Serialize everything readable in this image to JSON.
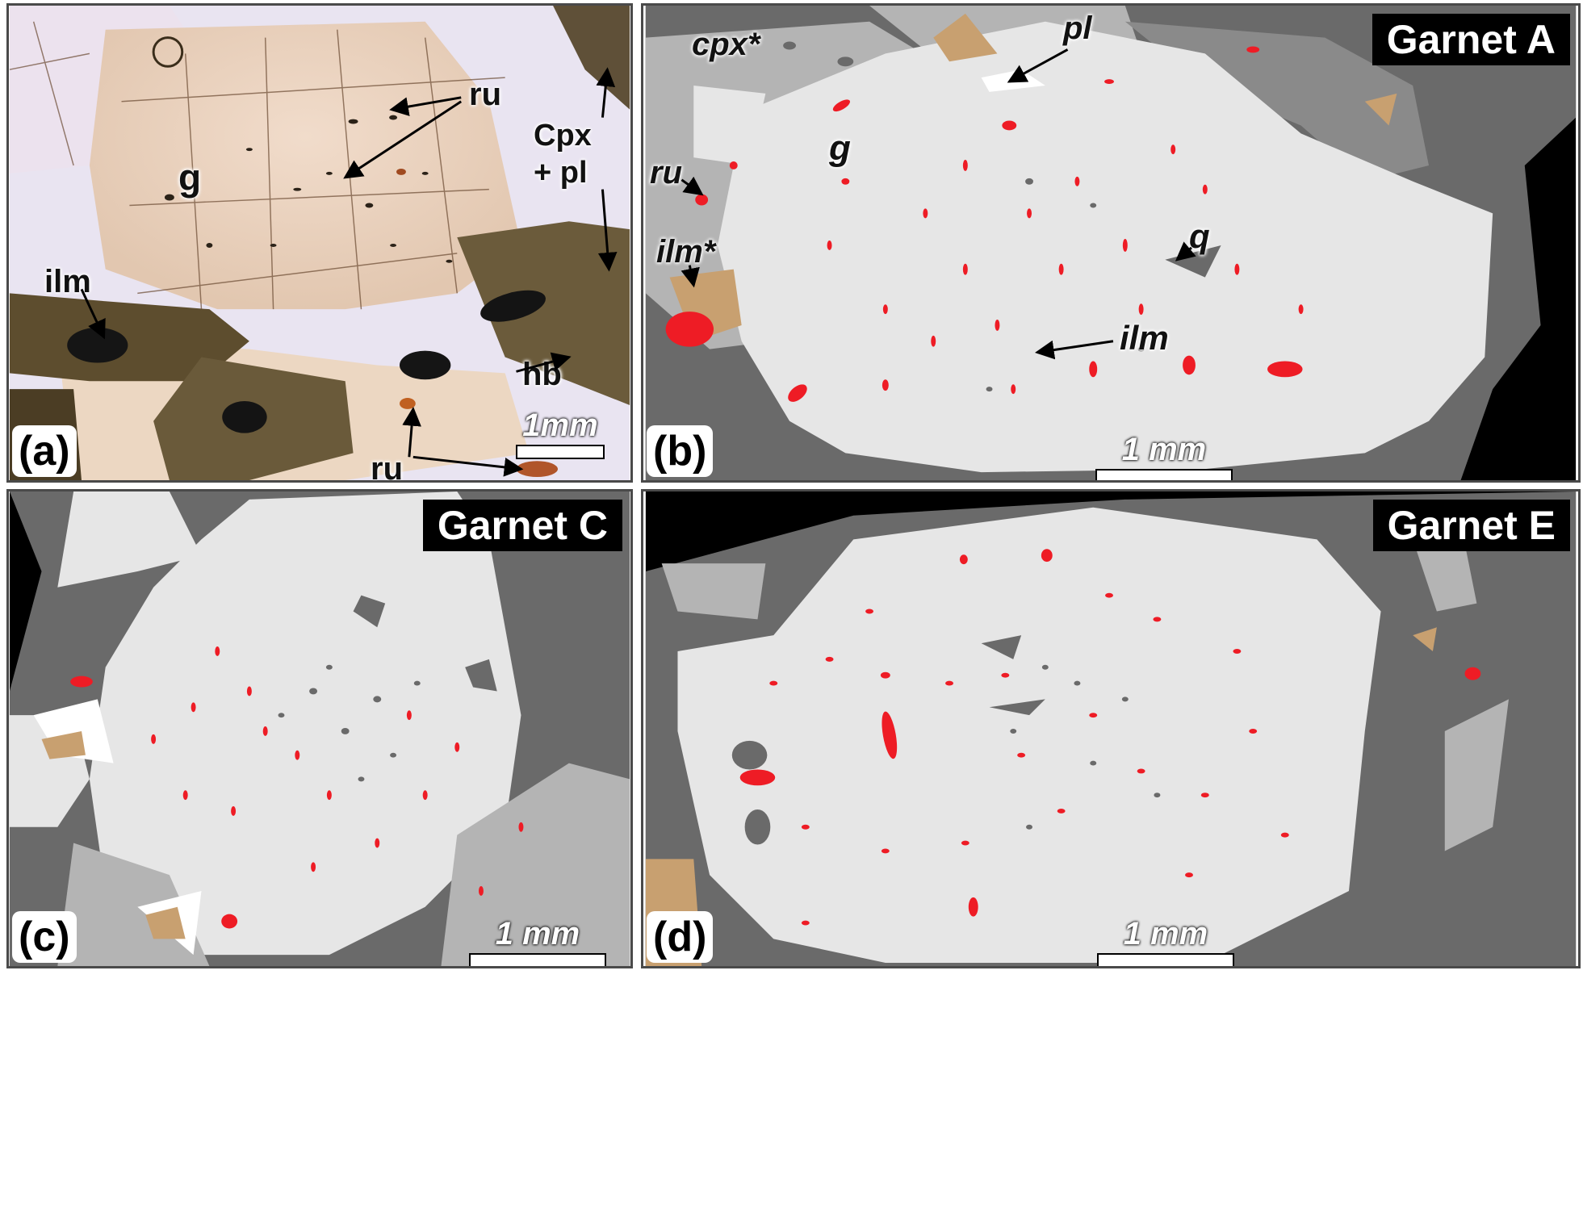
{
  "panels": {
    "a": {
      "letter": "(a)",
      "labels": {
        "ru_top": "ru",
        "g": "g",
        "cpx_pl_1": "Cpx",
        "cpx_pl_2": "+ pl",
        "ilm": "ilm",
        "hb": "hb",
        "ru_bottom": "ru"
      },
      "scale": "1mm"
    },
    "b": {
      "title": "Garnet A",
      "letter": "(b)",
      "labels": {
        "cpx": "cpx*",
        "pl": "pl",
        "g": "g",
        "ru": "ru",
        "ilm_star": "ilm*",
        "q": "q",
        "ilm": "ilm"
      },
      "scale": "1 mm"
    },
    "c": {
      "title": "Garnet C",
      "letter": "(c)",
      "scale": "1 mm"
    },
    "d": {
      "title": "Garnet E",
      "letter": "(d)",
      "scale": "1 mm"
    }
  },
  "colors": {
    "garnet": "#e6e6e6",
    "matrix_dark": "#6a6a6a",
    "matrix_light": "#b4b4b4",
    "rutile": "#ee1c25",
    "ilmenite": "#c8a070",
    "void": "#000000"
  }
}
